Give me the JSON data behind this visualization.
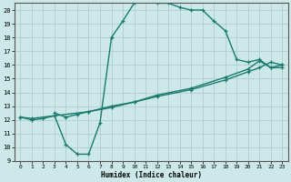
{
  "line1_x": [
    0,
    1,
    2,
    3,
    4,
    5,
    6,
    7,
    8,
    9,
    10,
    11,
    12,
    13,
    14,
    15,
    16,
    17,
    18,
    19,
    20,
    21,
    22,
    23
  ],
  "line1_y": [
    12.2,
    12.0,
    12.1,
    12.3,
    10.2,
    9.5,
    9.5,
    11.8,
    18.0,
    19.2,
    20.5,
    20.8,
    20.5,
    20.5,
    20.2,
    20.0,
    20.0,
    19.2,
    18.5,
    16.4,
    16.2,
    16.4,
    15.8,
    16.0
  ],
  "line2_x": [
    0,
    1,
    3,
    6,
    8,
    10,
    12,
    15,
    18,
    20,
    21,
    22,
    23
  ],
  "line2_y": [
    12.2,
    12.1,
    12.3,
    12.6,
    12.9,
    13.3,
    13.7,
    14.2,
    14.9,
    15.5,
    15.8,
    16.2,
    16.0
  ],
  "line3_x": [
    3,
    4,
    5,
    6,
    8,
    10,
    12,
    15,
    18,
    20,
    21,
    22,
    23
  ],
  "line3_y": [
    12.5,
    12.2,
    12.4,
    12.6,
    13.0,
    13.3,
    13.8,
    14.3,
    15.1,
    15.7,
    16.3,
    15.8,
    15.8
  ],
  "line_color": "#1a7a6e",
  "bg_color": "#cce8e8",
  "grid_color": "#b0cccc",
  "xlabel": "Humidex (Indice chaleur)",
  "xlim": [
    -0.5,
    23.5
  ],
  "ylim": [
    9,
    20.5
  ],
  "xticks": [
    0,
    1,
    2,
    3,
    4,
    5,
    6,
    7,
    8,
    9,
    10,
    11,
    12,
    13,
    14,
    15,
    16,
    17,
    18,
    19,
    20,
    21,
    22,
    23
  ],
  "yticks": [
    9,
    10,
    11,
    12,
    13,
    14,
    15,
    16,
    17,
    18,
    19,
    20
  ],
  "marker": "+",
  "markersize": 3.5,
  "linewidth": 1.0
}
